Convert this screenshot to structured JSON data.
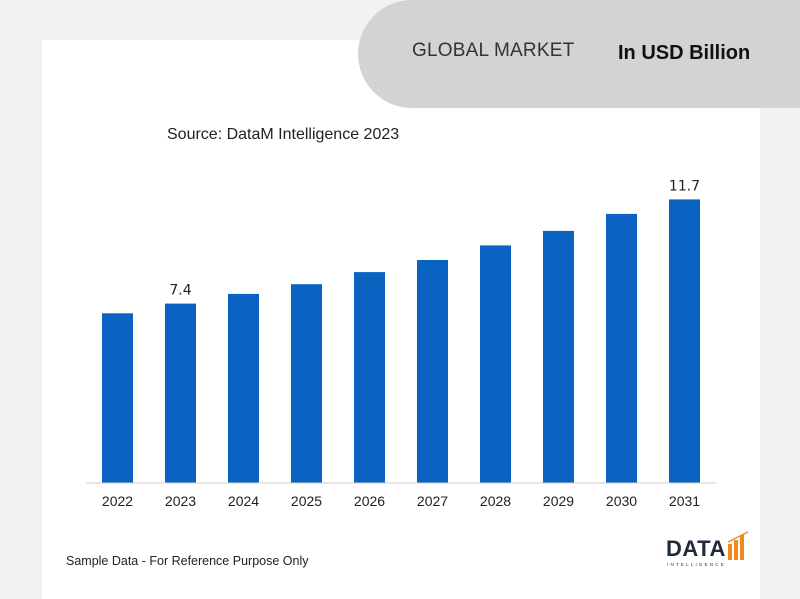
{
  "header": {
    "title": "GLOBAL MARKET",
    "unit_label": "In USD Billion"
  },
  "source": "Source: DataM Intelligence 2023",
  "footer": {
    "note": "Sample Data - For Reference Purpose Only"
  },
  "logo": {
    "word": "DATA",
    "sub": "INTELLIGENCE"
  },
  "colors": {
    "bar": "#0a63c0",
    "header_pill": "#d2d4d4",
    "accent_orange": "#f08a1c"
  },
  "chart_data": {
    "type": "bar",
    "categories": [
      "2022",
      "2023",
      "2024",
      "2025",
      "2026",
      "2027",
      "2028",
      "2029",
      "2030",
      "2031"
    ],
    "values": [
      7.0,
      7.4,
      7.8,
      8.2,
      8.7,
      9.2,
      9.8,
      10.4,
      11.1,
      11.7
    ],
    "data_labels": {
      "1": "7.4",
      "9": "11.7"
    },
    "title": "",
    "xlabel": "",
    "ylabel": "",
    "ylim": [
      0,
      12.5
    ],
    "grid": false,
    "legend": "none"
  }
}
